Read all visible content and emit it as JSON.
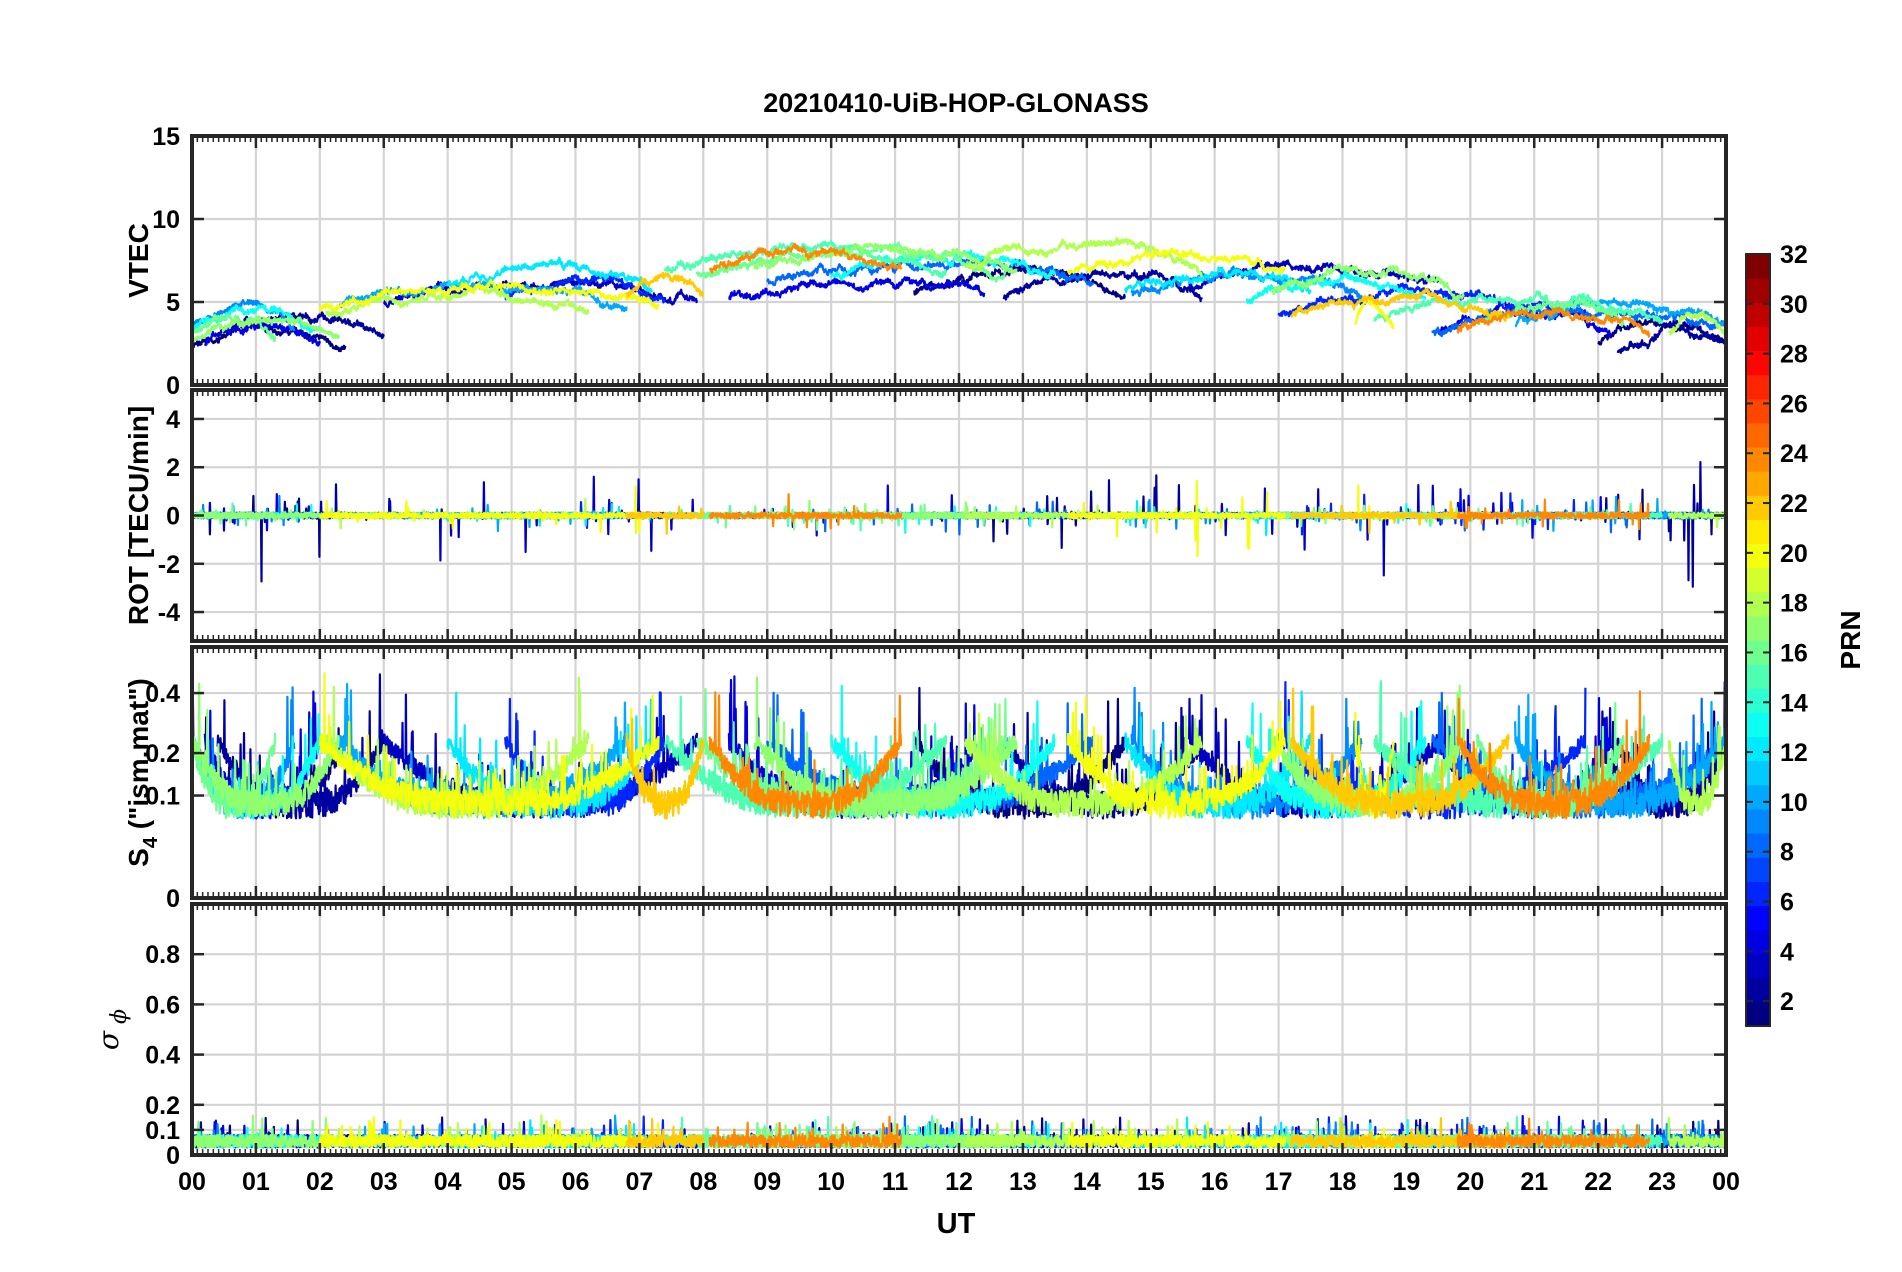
{
  "chart_data": {
    "type": "line",
    "title": "20210410-UiB-HOP-GLONASS",
    "xlabel": "UT",
    "x_tick_labels": [
      "00",
      "01",
      "02",
      "03",
      "04",
      "05",
      "06",
      "07",
      "08",
      "09",
      "10",
      "11",
      "12",
      "13",
      "14",
      "15",
      "16",
      "17",
      "18",
      "19",
      "20",
      "21",
      "22",
      "23",
      "00"
    ],
    "xlim_hours": [
      0,
      24
    ],
    "grid": true,
    "colorbar": {
      "label": "PRN",
      "limits": [
        1,
        32
      ],
      "tick_labels": [
        "2",
        "4",
        "6",
        "8",
        "10",
        "12",
        "14",
        "16",
        "18",
        "20",
        "22",
        "24",
        "26",
        "28",
        "30",
        "32"
      ],
      "colormap": "jet",
      "placement": "right"
    },
    "panels": [
      {
        "id": "vtec",
        "ylabel": "VTEC",
        "ylim": [
          0,
          15
        ],
        "y_ticks": [
          0,
          5,
          10,
          15
        ],
        "y_tick_labels": [
          "0",
          "5",
          "10",
          "15"
        ],
        "kind": "vtec"
      },
      {
        "id": "rot",
        "ylabel": "ROT [TECU/min]",
        "ylim": [
          -5.2,
          5.2
        ],
        "y_ticks": [
          -4,
          -2,
          0,
          2,
          4
        ],
        "y_tick_labels": [
          "-4",
          "-2",
          "0",
          "2",
          "4"
        ],
        "kind": "rot"
      },
      {
        "id": "s4",
        "ylabel_main": "S",
        "ylabel_sub": "4",
        "ylabel_rest": " (\"ism.mat\")",
        "ylim": [
          0,
          0.6
        ],
        "y_ticks": [
          0,
          0.1,
          0.2,
          0.4
        ],
        "y_tick_labels": [
          "0",
          "0.1",
          "0.2",
          "0.4"
        ],
        "transform": "sqrt",
        "kind": "s4"
      },
      {
        "id": "sigphi",
        "ylabel_symbol": "σ",
        "ylabel_sub": "ϕ",
        "ylim": [
          0,
          1
        ],
        "y_ticks": [
          0,
          0.1,
          0.2,
          0.4,
          0.6,
          0.8
        ],
        "y_tick_labels": [
          "0",
          "0.1",
          "0.2",
          "0.4",
          "0.6",
          "0.8"
        ],
        "kind": "sigphi"
      }
    ],
    "series": [
      {
        "prn": 1,
        "segments": [
          [
            0.0,
            2.4,
            3.4
          ],
          [
            11.3,
            14.6,
            6.8
          ],
          [
            22.0,
            24.0,
            3.6
          ]
        ],
        "peak": 1.5
      },
      {
        "prn": 2,
        "segments": [
          [
            0.4,
            3.0,
            4.2
          ],
          [
            12.7,
            15.8,
            6.5
          ],
          [
            22.3,
            24.0,
            3.4
          ]
        ],
        "peak": 3.5
      },
      {
        "prn": 3,
        "segments": [
          [
            3.0,
            7.9,
            6.2
          ],
          [
            15.6,
            19.5,
            7.2
          ]
        ],
        "peak": 2.5
      },
      {
        "prn": 4,
        "segments": [
          [
            0.2,
            2.0,
            3.6
          ],
          [
            8.4,
            12.4,
            6.4
          ],
          [
            19.5,
            22.2,
            4.4
          ]
        ],
        "peak": 1.2
      },
      {
        "prn": 6,
        "segments": [
          [
            4.9,
            7.4,
            6.3
          ],
          [
            17.0,
            21.8,
            5.4
          ]
        ],
        "peak": 1.0
      },
      {
        "prn": 8,
        "segments": [
          [
            9.0,
            14.1,
            7.4
          ],
          [
            19.4,
            24.0,
            4.5
          ]
        ],
        "peak": 1.0
      },
      {
        "prn": 9,
        "segments": [
          [
            0.0,
            1.6,
            4.8
          ],
          [
            14.7,
            18.3,
            6.6
          ]
        ],
        "peak": 0.8
      },
      {
        "prn": 10,
        "segments": [
          [
            2.3,
            6.8,
            6.0
          ],
          [
            20.7,
            24.0,
            4.8
          ]
        ],
        "peak": 0.8
      },
      {
        "prn": 12,
        "segments": [
          [
            4.0,
            7.2,
            7.2
          ],
          [
            14.6,
            17.5,
            6.8
          ]
        ],
        "peak": 0.9
      },
      {
        "prn": 13,
        "segments": [
          [
            0.0,
            2.0,
            4.5
          ],
          [
            10.0,
            13.5,
            7.8
          ],
          [
            16.5,
            19.3,
            6.2
          ]
        ],
        "peak": 0.7
      },
      {
        "prn": 15,
        "segments": [
          [
            7.4,
            11.8,
            8.2
          ],
          [
            18.5,
            23.0,
            5.2
          ]
        ],
        "peak": 0.6
      },
      {
        "prn": 16,
        "segments": [
          [
            0.0,
            1.3,
            4.2
          ],
          [
            7.9,
            12.8,
            8.0
          ],
          [
            20.1,
            22.4,
            4.9
          ]
        ],
        "peak": 0.6
      },
      {
        "prn": 17,
        "segments": [
          [
            0.0,
            2.3,
            3.8
          ],
          [
            8.8,
            12.9,
            8.2
          ],
          [
            16.9,
            19.9,
            6.8
          ]
        ],
        "peak": 0.6
      },
      {
        "prn": 18,
        "segments": [
          [
            2.1,
            6.2,
            5.6
          ],
          [
            12.1,
            15.8,
            8.4
          ],
          [
            23.1,
            24.0,
            4.4
          ]
        ],
        "peak": 0.7
      },
      {
        "prn": 20,
        "segments": [
          [
            2.0,
            7.3,
            5.9
          ],
          [
            13.7,
            17.1,
            8.0
          ],
          [
            18.2,
            18.8,
            4.9
          ]
        ],
        "peak": 1.8
      },
      {
        "prn": 22,
        "segments": [
          [
            6.8,
            8.0,
            6.5
          ],
          [
            17.2,
            20.6,
            5.3
          ]
        ],
        "peak": 0.9
      },
      {
        "prn": 24,
        "segments": [
          [
            8.1,
            11.1,
            8.1
          ],
          [
            19.8,
            22.8,
            4.5
          ]
        ],
        "peak": 0.8
      }
    ]
  }
}
